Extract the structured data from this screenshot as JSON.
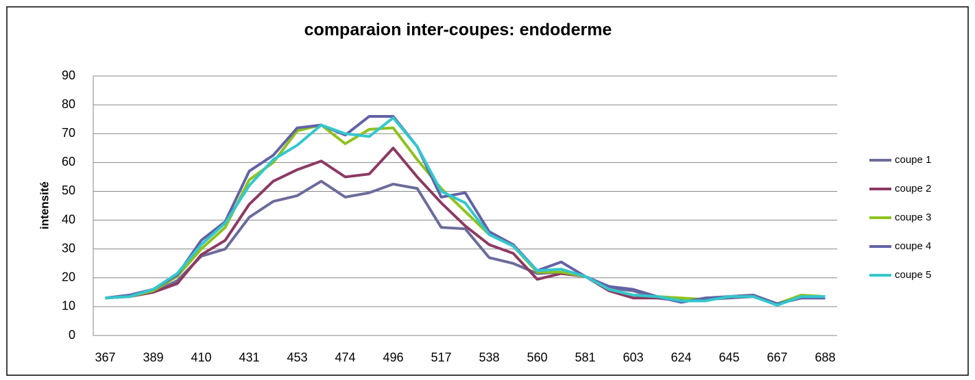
{
  "chart_data": {
    "type": "line",
    "title": "comparaion inter-coupes: endoderme",
    "y_label": "intensité",
    "categories": [
      "367",
      null,
      "389",
      null,
      "410",
      null,
      "431",
      null,
      "453",
      null,
      "474",
      null,
      "496",
      null,
      "517",
      null,
      "538",
      null,
      "560",
      null,
      "581",
      null,
      "603",
      null,
      "624",
      null,
      "645",
      null,
      "667",
      null,
      "688"
    ],
    "ylim": [
      0,
      90
    ],
    "yticks": [
      0,
      10,
      20,
      30,
      40,
      50,
      60,
      70,
      80,
      90
    ],
    "grid": true,
    "legend": "right",
    "series": [
      {
        "name": "coupe 1",
        "color": "#6b6c9a",
        "values": [
          13,
          13.5,
          15,
          19,
          27.5,
          30,
          41,
          46.5,
          48.5,
          53.5,
          48,
          49.5,
          52.5,
          51,
          37.5,
          37,
          27,
          25,
          21.5,
          22,
          20.5,
          16.5,
          15.5,
          13,
          12,
          12.5,
          13,
          13.5,
          11,
          13,
          13
        ]
      },
      {
        "name": "coupe 2",
        "color": "#8b3a62",
        "values": [
          13,
          13.5,
          15,
          18,
          28,
          33,
          45.5,
          53.5,
          57.5,
          60.5,
          55,
          56,
          65,
          55,
          46,
          38,
          31.5,
          28.5,
          19.5,
          21.5,
          20.5,
          15.5,
          13,
          13,
          12.5,
          12.5,
          13.5,
          13.5,
          11,
          13.5,
          13.5
        ]
      },
      {
        "name": "coupe 3",
        "color": "#8dc21f",
        "values": [
          13,
          13.5,
          15.5,
          20.5,
          30,
          37.5,
          54,
          60,
          71,
          73,
          66.5,
          71.5,
          72,
          61,
          51,
          43,
          35,
          31,
          22,
          22,
          20.5,
          16,
          14,
          13.5,
          13,
          12.5,
          13.5,
          14,
          11,
          14,
          13.5
        ]
      },
      {
        "name": "coupe 4",
        "color": "#6262a6",
        "values": [
          13,
          14,
          16,
          21,
          33,
          39.5,
          57,
          62.5,
          72,
          73,
          69.5,
          76,
          76,
          65.5,
          48,
          49.5,
          36,
          31.5,
          22.5,
          25.5,
          20.5,
          17,
          16,
          13.5,
          11.5,
          13,
          13.5,
          14,
          11,
          13,
          13
        ]
      },
      {
        "name": "coupe 5",
        "color": "#33c7cf",
        "values": [
          13,
          13.5,
          16,
          21.5,
          31.5,
          39,
          52,
          61,
          66,
          73,
          70,
          69,
          75.5,
          65.5,
          50,
          46,
          35,
          31,
          22.5,
          23,
          20.5,
          16,
          14,
          13.5,
          12,
          12,
          13.5,
          13.5,
          10.5,
          13.5,
          13.5
        ]
      }
    ]
  }
}
